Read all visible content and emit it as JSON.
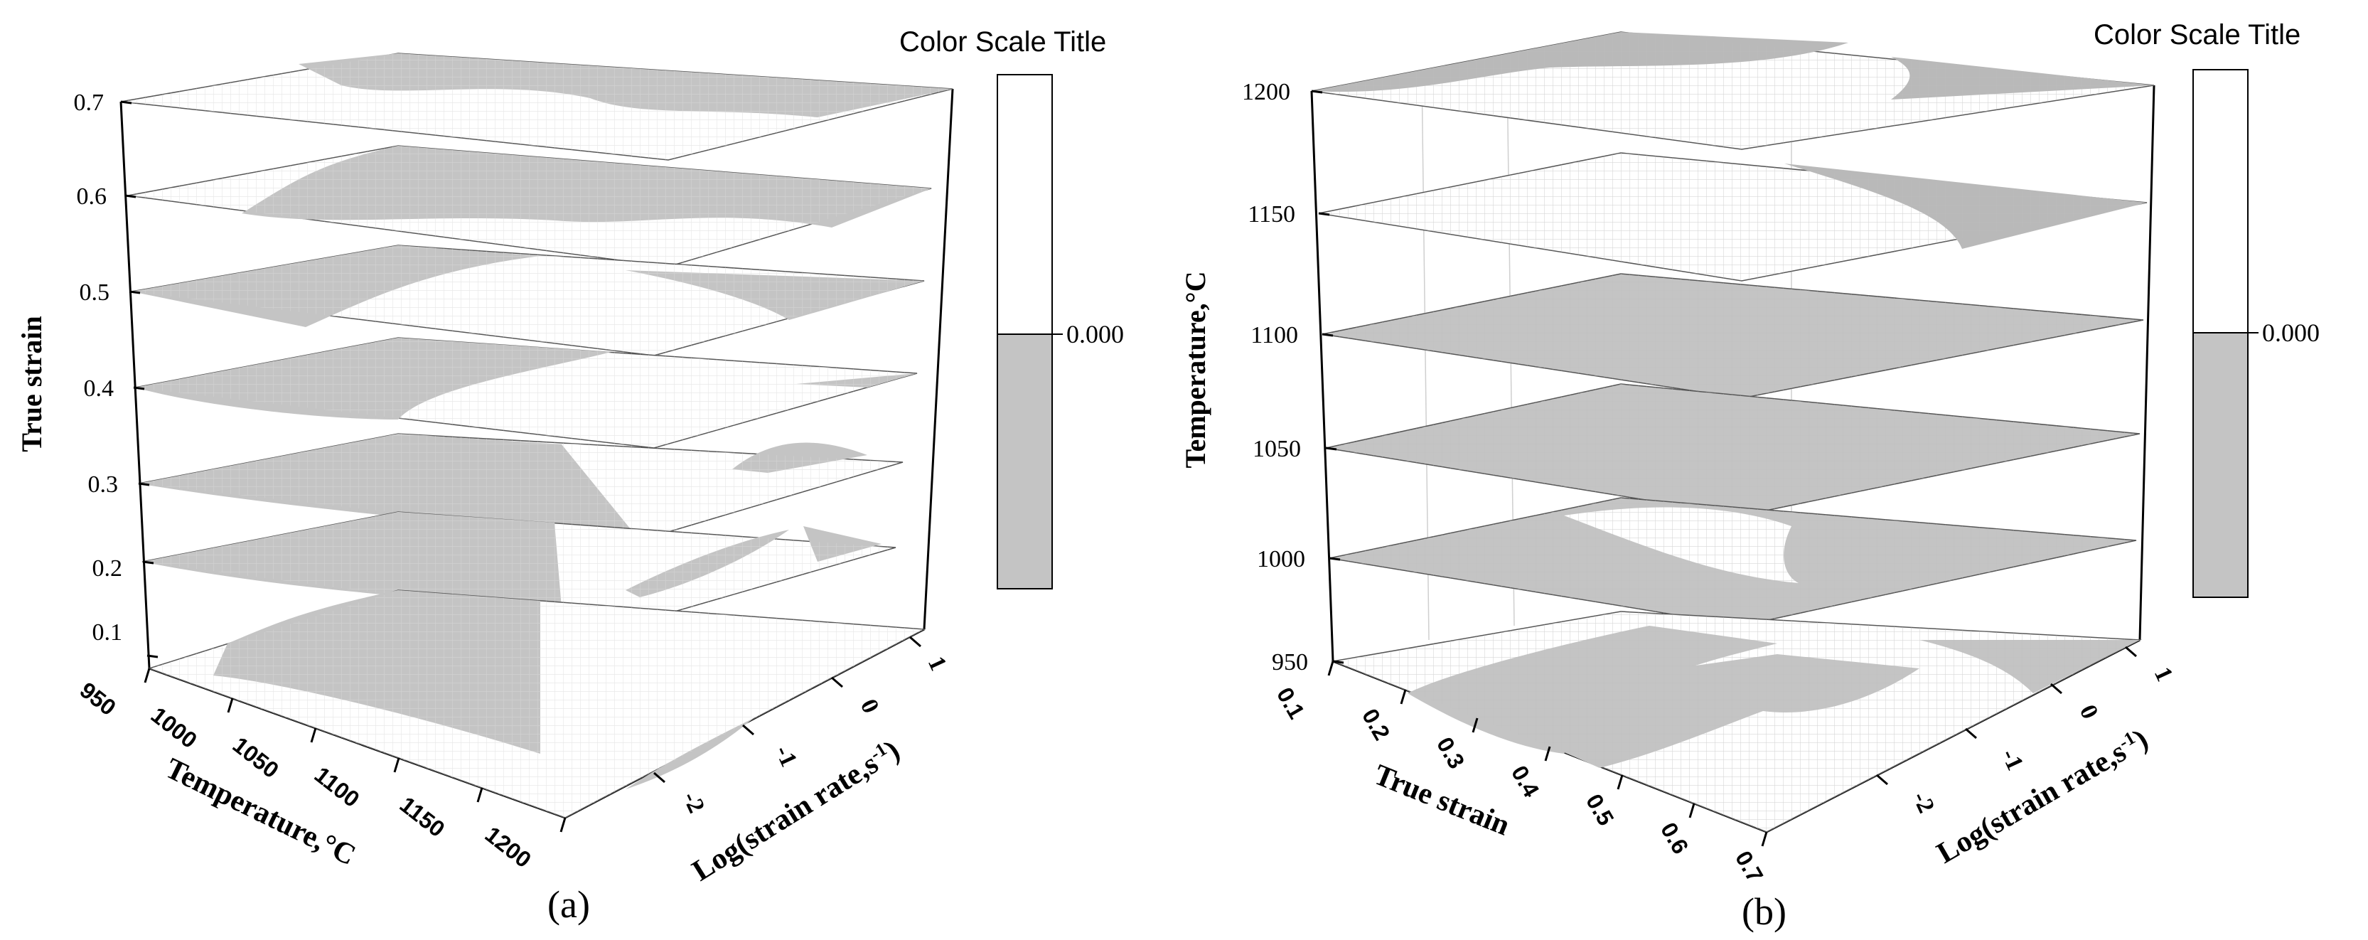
{
  "figure": {
    "panels": [
      {
        "id": "a",
        "caption": "(a)",
        "x_axis": {
          "label": "Temperature,°C",
          "ticks": [
            "950",
            "1000",
            "1050",
            "1100",
            "1150",
            "1200"
          ]
        },
        "y_axis": {
          "label": "Log(strain rate,s",
          "label_sup": "-1",
          "label_end": ")",
          "ticks": [
            "-2",
            "-1",
            "0",
            "1"
          ]
        },
        "z_axis": {
          "label": "True strain",
          "ticks": [
            "0.1",
            "0.2",
            "0.3",
            "0.4",
            "0.5",
            "0.6",
            "0.7"
          ]
        },
        "color_scale": {
          "title": "Color Scale Title",
          "tick": "0.000"
        }
      },
      {
        "id": "b",
        "caption": "(b)",
        "x_axis": {
          "label": "True strain",
          "ticks": [
            "0.1",
            "0.2",
            "0.3",
            "0.4",
            "0.5",
            "0.6",
            "0.7"
          ]
        },
        "y_axis": {
          "label": "Log(strain rate,s",
          "label_sup": "-1",
          "label_end": ")",
          "ticks": [
            "-2",
            "-1",
            "0",
            "1"
          ]
        },
        "z_axis": {
          "label": "Temperature,°C",
          "ticks": [
            "950",
            "1000",
            "1050",
            "1100",
            "1150",
            "1200"
          ]
        },
        "color_scale": {
          "title": "Color Scale Title",
          "tick": "0.000"
        }
      }
    ]
  },
  "colors": {
    "unstable": "#c4c4c4",
    "stable": "#ffffff",
    "grid": "#d8d8d8",
    "axis": "#000000"
  },
  "chart_data": [
    {
      "type": "contour-3d-slices",
      "panel": "a",
      "xlabel": "Temperature,°C",
      "ylabel": "Log(strain rate,s-1)",
      "zlabel": "True strain",
      "xlim": [
        950,
        1200
      ],
      "ylim": [
        -2.5,
        1.5
      ],
      "zlim": [
        0.1,
        0.7
      ],
      "slice_levels": [
        0.1,
        0.2,
        0.3,
        0.4,
        0.5,
        0.6,
        0.7
      ],
      "contour_level": 0.0,
      "colorbar": {
        "title": "Color Scale Title",
        "ticks": [
          0.0
        ],
        "regions": [
          "below 0 (shaded)",
          "above 0 (white)"
        ]
      }
    },
    {
      "type": "contour-3d-slices",
      "panel": "b",
      "xlabel": "True strain",
      "ylabel": "Log(strain rate,s-1)",
      "zlabel": "Temperature,°C",
      "xlim": [
        0.1,
        0.7
      ],
      "ylim": [
        -2.5,
        1.5
      ],
      "zlim": [
        950,
        1200
      ],
      "slice_levels": [
        950,
        1000,
        1050,
        1100,
        1150,
        1200
      ],
      "contour_level": 0.0,
      "colorbar": {
        "title": "Color Scale Title",
        "ticks": [
          0.0
        ],
        "regions": [
          "below 0 (shaded)",
          "above 0 (white)"
        ]
      }
    }
  ]
}
